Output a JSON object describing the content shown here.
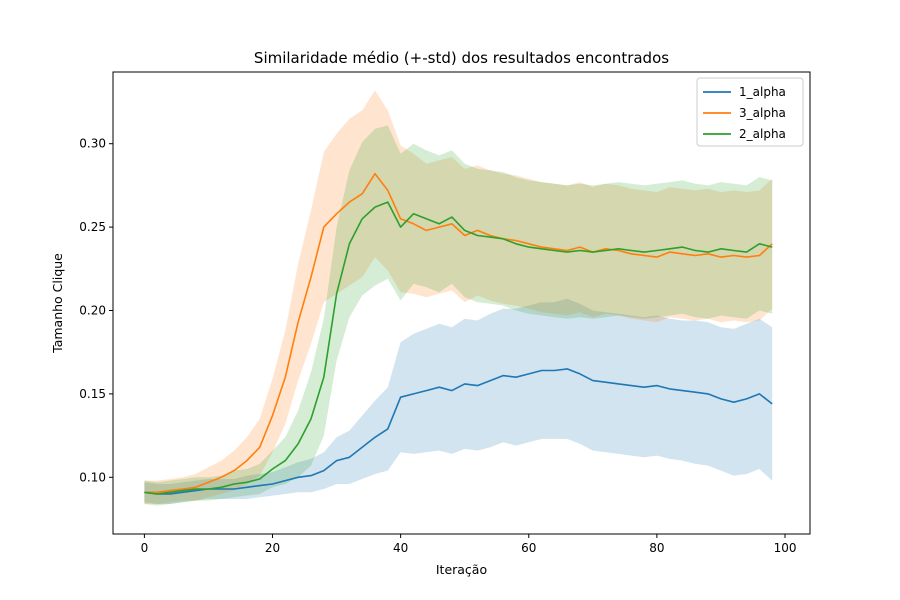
{
  "chart_data": {
    "type": "line",
    "title": "Similaridade médio (+-std) dos resultados encontrados",
    "xlabel": "Iteração",
    "ylabel": "Tamanho Clique",
    "xlim": [
      -4.9,
      103.9
    ],
    "ylim": [
      0.066,
      0.343
    ],
    "xticks": [
      0,
      20,
      40,
      60,
      80,
      100
    ],
    "yticks": [
      0.1,
      0.15,
      0.2,
      0.25,
      0.3
    ],
    "grid": false,
    "legend_position": "top-right",
    "series": [
      {
        "name": "1_alpha",
        "color": "#1f77b4",
        "x": [
          0,
          2,
          4,
          6,
          8,
          10,
          12,
          14,
          16,
          18,
          20,
          22,
          24,
          26,
          28,
          30,
          32,
          34,
          36,
          38,
          40,
          42,
          44,
          46,
          48,
          50,
          52,
          54,
          56,
          58,
          60,
          62,
          64,
          66,
          68,
          70,
          72,
          74,
          76,
          78,
          80,
          82,
          84,
          86,
          88,
          90,
          92,
          94,
          96,
          98
        ],
        "mean": [
          0.091,
          0.09,
          0.09,
          0.091,
          0.092,
          0.093,
          0.093,
          0.093,
          0.094,
          0.095,
          0.096,
          0.098,
          0.1,
          0.101,
          0.104,
          0.11,
          0.112,
          0.118,
          0.124,
          0.129,
          0.148,
          0.15,
          0.152,
          0.154,
          0.152,
          0.156,
          0.155,
          0.158,
          0.161,
          0.16,
          0.162,
          0.164,
          0.164,
          0.165,
          0.162,
          0.158,
          0.157,
          0.156,
          0.155,
          0.154,
          0.155,
          0.153,
          0.152,
          0.151,
          0.15,
          0.147,
          0.145,
          0.147,
          0.15,
          0.144
        ],
        "std": [
          0.006,
          0.006,
          0.006,
          0.006,
          0.006,
          0.006,
          0.006,
          0.006,
          0.007,
          0.007,
          0.007,
          0.008,
          0.009,
          0.01,
          0.011,
          0.014,
          0.016,
          0.019,
          0.022,
          0.025,
          0.033,
          0.036,
          0.037,
          0.038,
          0.038,
          0.039,
          0.039,
          0.04,
          0.04,
          0.041,
          0.041,
          0.041,
          0.041,
          0.042,
          0.042,
          0.042,
          0.042,
          0.042,
          0.042,
          0.042,
          0.042,
          0.042,
          0.042,
          0.043,
          0.043,
          0.043,
          0.044,
          0.045,
          0.045,
          0.046
        ]
      },
      {
        "name": "3_alpha",
        "color": "#ff7f0e",
        "x": [
          0,
          2,
          4,
          6,
          8,
          10,
          12,
          14,
          16,
          18,
          20,
          22,
          24,
          26,
          28,
          30,
          32,
          34,
          36,
          38,
          40,
          42,
          44,
          46,
          48,
          50,
          52,
          54,
          56,
          58,
          60,
          62,
          64,
          66,
          68,
          70,
          72,
          74,
          76,
          78,
          80,
          82,
          84,
          86,
          88,
          90,
          92,
          94,
          96,
          98
        ],
        "mean": [
          0.091,
          0.091,
          0.092,
          0.093,
          0.094,
          0.097,
          0.1,
          0.104,
          0.11,
          0.118,
          0.137,
          0.16,
          0.193,
          0.22,
          0.25,
          0.258,
          0.265,
          0.27,
          0.282,
          0.272,
          0.255,
          0.252,
          0.248,
          0.25,
          0.252,
          0.245,
          0.248,
          0.245,
          0.243,
          0.242,
          0.24,
          0.238,
          0.237,
          0.236,
          0.238,
          0.235,
          0.237,
          0.236,
          0.234,
          0.233,
          0.232,
          0.235,
          0.234,
          0.233,
          0.234,
          0.232,
          0.233,
          0.232,
          0.233,
          0.24
        ],
        "std": [
          0.007,
          0.007,
          0.007,
          0.007,
          0.008,
          0.009,
          0.01,
          0.012,
          0.014,
          0.017,
          0.022,
          0.028,
          0.035,
          0.04,
          0.045,
          0.048,
          0.05,
          0.05,
          0.05,
          0.048,
          0.044,
          0.042,
          0.04,
          0.04,
          0.04,
          0.04,
          0.039,
          0.039,
          0.039,
          0.039,
          0.039,
          0.039,
          0.039,
          0.039,
          0.039,
          0.039,
          0.039,
          0.039,
          0.039,
          0.039,
          0.039,
          0.039,
          0.039,
          0.039,
          0.039,
          0.039,
          0.039,
          0.039,
          0.039,
          0.039
        ]
      },
      {
        "name": "2_alpha",
        "color": "#2ca02c",
        "x": [
          0,
          2,
          4,
          6,
          8,
          10,
          12,
          14,
          16,
          18,
          20,
          22,
          24,
          26,
          28,
          30,
          32,
          34,
          36,
          38,
          40,
          42,
          44,
          46,
          48,
          50,
          52,
          54,
          56,
          58,
          60,
          62,
          64,
          66,
          68,
          70,
          72,
          74,
          76,
          78,
          80,
          82,
          84,
          86,
          88,
          90,
          92,
          94,
          96,
          98
        ],
        "mean": [
          0.091,
          0.09,
          0.091,
          0.092,
          0.093,
          0.093,
          0.094,
          0.096,
          0.097,
          0.099,
          0.105,
          0.11,
          0.12,
          0.135,
          0.16,
          0.21,
          0.24,
          0.255,
          0.262,
          0.265,
          0.25,
          0.258,
          0.255,
          0.252,
          0.256,
          0.248,
          0.245,
          0.244,
          0.243,
          0.24,
          0.238,
          0.237,
          0.236,
          0.235,
          0.236,
          0.235,
          0.236,
          0.237,
          0.236,
          0.235,
          0.236,
          0.237,
          0.238,
          0.236,
          0.235,
          0.237,
          0.236,
          0.235,
          0.24,
          0.238
        ],
        "std": [
          0.007,
          0.007,
          0.007,
          0.007,
          0.007,
          0.007,
          0.007,
          0.008,
          0.008,
          0.009,
          0.011,
          0.014,
          0.02,
          0.028,
          0.035,
          0.04,
          0.044,
          0.046,
          0.047,
          0.046,
          0.044,
          0.042,
          0.041,
          0.041,
          0.04,
          0.04,
          0.04,
          0.04,
          0.04,
          0.04,
          0.04,
          0.04,
          0.04,
          0.04,
          0.04,
          0.04,
          0.04,
          0.04,
          0.04,
          0.04,
          0.04,
          0.04,
          0.04,
          0.04,
          0.04,
          0.04,
          0.04,
          0.04,
          0.04,
          0.04
        ]
      }
    ]
  }
}
